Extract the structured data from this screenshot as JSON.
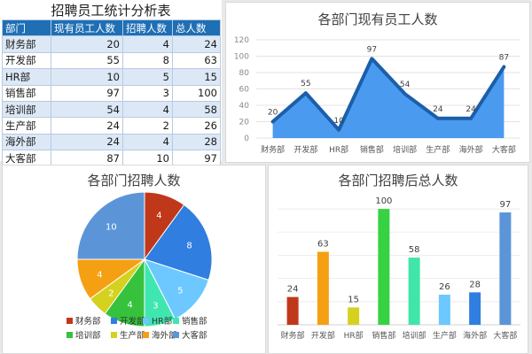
{
  "table": {
    "title": "招聘员工统计分析表",
    "headers": [
      "部门",
      "现有员工人数",
      "招聘人数",
      "总人数"
    ],
    "rows": [
      [
        "财务部",
        "20",
        "4",
        "24"
      ],
      [
        "开发部",
        "55",
        "8",
        "63"
      ],
      [
        "HR部",
        "10",
        "5",
        "15"
      ],
      [
        "销售部",
        "97",
        "3",
        "100"
      ],
      [
        "培训部",
        "54",
        "4",
        "58"
      ],
      [
        "生产部",
        "24",
        "2",
        "26"
      ],
      [
        "海外部",
        "24",
        "4",
        "28"
      ],
      [
        "大客部",
        "87",
        "10",
        "97"
      ]
    ]
  },
  "chart_data": [
    {
      "type": "area",
      "title": "各部门现有员工人数",
      "categories": [
        "财务部",
        "开发部",
        "HR部",
        "销售部",
        "培训部",
        "生产部",
        "海外部",
        "大客部"
      ],
      "values": [
        20,
        55,
        10,
        97,
        54,
        24,
        24,
        87
      ],
      "ylim": [
        0,
        120
      ],
      "yticks": [
        0,
        20,
        40,
        60,
        80,
        100,
        120
      ],
      "grid": true,
      "colors": {
        "fill": "#4a9af0",
        "line": "#1b5faa"
      }
    },
    {
      "type": "pie",
      "title": "各部门招聘人数",
      "categories": [
        "财务部",
        "开发部",
        "HR部",
        "销售部",
        "培训部",
        "生产部",
        "海外部",
        "大客部"
      ],
      "values": [
        4,
        8,
        5,
        3,
        4,
        2,
        4,
        10
      ],
      "legend": "bottom",
      "colors": [
        "#c0381a",
        "#2f7ee0",
        "#6cc8ff",
        "#3fe6b0",
        "#36c23c",
        "#d4d21e",
        "#f5a012",
        "#5b95d8"
      ]
    },
    {
      "type": "bar",
      "title": "各部门招聘后总人数",
      "categories": [
        "财务部",
        "开发部",
        "HR部",
        "销售部",
        "培训部",
        "生产部",
        "海外部",
        "大客部"
      ],
      "values": [
        24,
        63,
        15,
        100,
        58,
        26,
        28,
        97
      ],
      "ylim": [
        0,
        110
      ],
      "grid": true,
      "colors": [
        "#c0381a",
        "#f5a012",
        "#d4d21e",
        "#36d244",
        "#3fe6a8",
        "#6cc8ff",
        "#2f7ee0",
        "#5b95d8"
      ]
    }
  ]
}
